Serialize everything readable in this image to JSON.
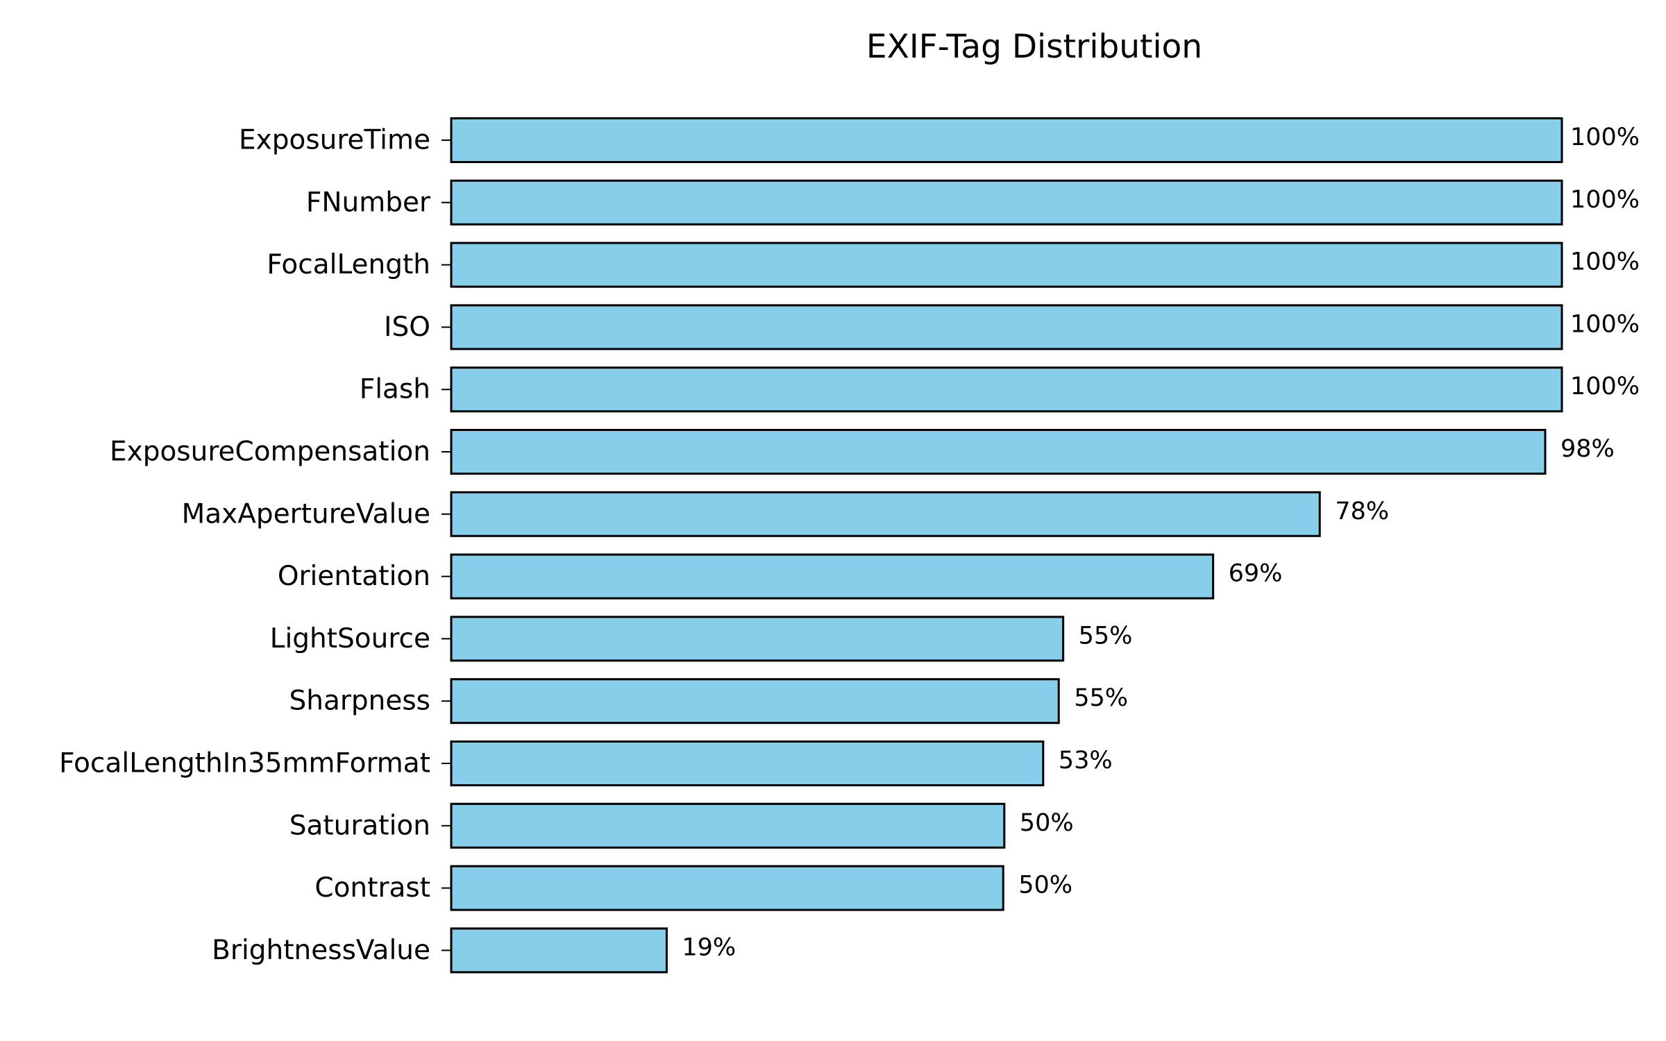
{
  "chart_data": {
    "type": "bar",
    "orientation": "horizontal",
    "title": "EXIF-Tag Distribution",
    "xlabel": "",
    "ylabel": "",
    "xlim": [
      0,
      100
    ],
    "grid": false,
    "x_axis_visible": false,
    "bar_color": "#87CEEB",
    "bar_edge_color": "#000000",
    "value_suffix": "%",
    "categories": [
      "ExposureTime",
      "FNumber",
      "FocalLength",
      "ISO",
      "Flash",
      "ExposureCompensation",
      "MaxApertureValue",
      "Orientation",
      "LightSource",
      "Sharpness",
      "FocalLengthIn35mmFormat",
      "Saturation",
      "Contrast",
      "BrightnessValue"
    ],
    "values": [
      100,
      100,
      100,
      100,
      100,
      98.5,
      78.2,
      68.6,
      55.1,
      54.7,
      53.3,
      49.8,
      49.7,
      19.4
    ],
    "data_labels": [
      "100%",
      "100%",
      "100%",
      "100%",
      "100%",
      "98%",
      "78%",
      "69%",
      "55%",
      "55%",
      "53%",
      "50%",
      "50%",
      "19%"
    ]
  }
}
